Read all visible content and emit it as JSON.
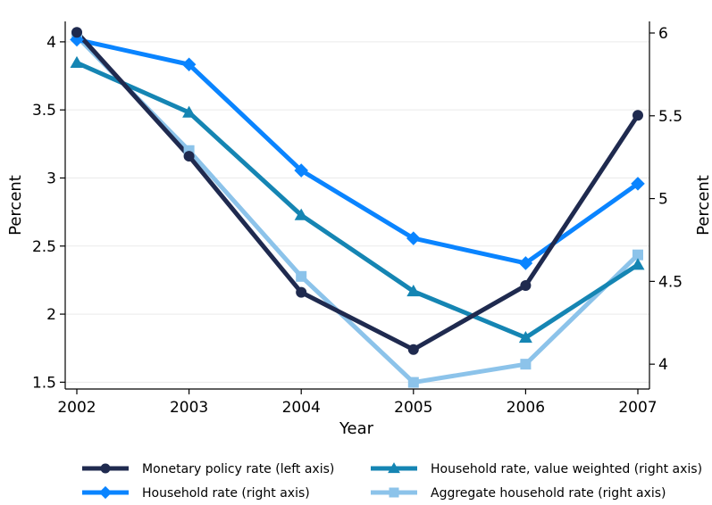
{
  "chart_data": {
    "type": "line",
    "title": "",
    "xlabel": "Year",
    "ylabel_left": "Percent",
    "ylabel_right": "Percent",
    "x": [
      2002,
      2003,
      2004,
      2005,
      2006,
      2007
    ],
    "x_ticks": [
      "2002",
      "2003",
      "2004",
      "2005",
      "2006",
      "2007"
    ],
    "ylim_left": [
      1.45,
      4.15
    ],
    "yticks_left": [
      "1.5",
      "2",
      "2.5",
      "3",
      "3.5",
      "4"
    ],
    "ylim_right": [
      3.85,
      6.07
    ],
    "yticks_right": [
      "4",
      "4.5",
      "5",
      "5.5",
      "6"
    ],
    "grid": "horizontal",
    "legend_position": "bottom",
    "series": [
      {
        "name": "Monetary policy rate (left axis)",
        "axis": "left",
        "color": "#1f2a4f",
        "marker": "circle",
        "values": [
          4.07,
          3.16,
          2.16,
          1.74,
          2.21,
          3.46
        ]
      },
      {
        "name": "Household rate (right axis)",
        "axis": "right",
        "color": "#0a84ff",
        "marker": "diamond",
        "values": [
          5.96,
          5.81,
          5.17,
          4.76,
          4.61,
          5.09
        ]
      },
      {
        "name": "Household rate, value weighted (right axis)",
        "axis": "right",
        "color": "#1585b3",
        "marker": "triangle",
        "values": [
          5.82,
          5.52,
          4.9,
          4.44,
          4.16,
          4.6
        ]
      },
      {
        "name": "Aggregate household rate (right axis)",
        "axis": "right",
        "color": "#8cc3ea",
        "marker": "square",
        "values": [
          5.98,
          5.29,
          4.53,
          3.89,
          4.0,
          4.66
        ]
      }
    ]
  }
}
